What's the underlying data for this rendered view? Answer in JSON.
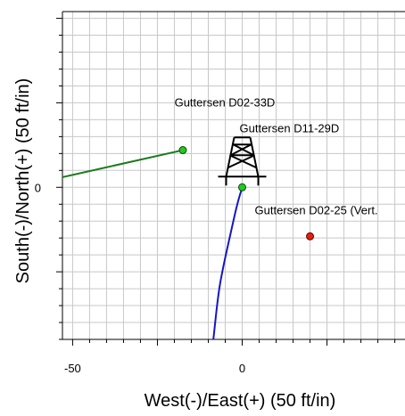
{
  "chart_data": {
    "type": "scatter",
    "title": "",
    "xlabel": "West(-)/East(+) (50 ft/in)",
    "ylabel": "South(-)/North(+) (50 ft/in)",
    "xlim": [
      -53,
      48
    ],
    "ylim": [
      -45,
      52
    ],
    "xticks": [
      -50,
      0
    ],
    "yticks": [
      0
    ],
    "grid": true,
    "colors": {
      "green": "#1a7a1a",
      "blue": "#1515c8",
      "red": "#e02010",
      "grid": "#c8c8c8"
    },
    "wells": [
      {
        "name": "Guttersen D02-33D",
        "label": "Guttersen D02-33D",
        "color": "green",
        "surface": {
          "x": -17.5,
          "y": 11
        },
        "path": [
          [
            -17.5,
            11
          ],
          [
            -53,
            3
          ]
        ]
      },
      {
        "name": "Guttersen D11-29D",
        "label": "Guttersen D11-29D",
        "color": "blue",
        "surface": {
          "x": 0,
          "y": 0
        },
        "path": [
          [
            0,
            0
          ],
          [
            -1.5,
            -5
          ],
          [
            -3.5,
            -14
          ],
          [
            -5.5,
            -23
          ],
          [
            -7,
            -31
          ],
          [
            -8.5,
            -45
          ]
        ]
      },
      {
        "name": "Guttersen D02-25 (Vert.",
        "label": "Guttersen D02-25 (Vert.",
        "color": "red",
        "surface": {
          "x": 20,
          "y": -14.5
        },
        "path": []
      }
    ],
    "rig_icon": "drilling-rig-icon",
    "rig_location": {
      "x": 0,
      "y": 0
    }
  }
}
